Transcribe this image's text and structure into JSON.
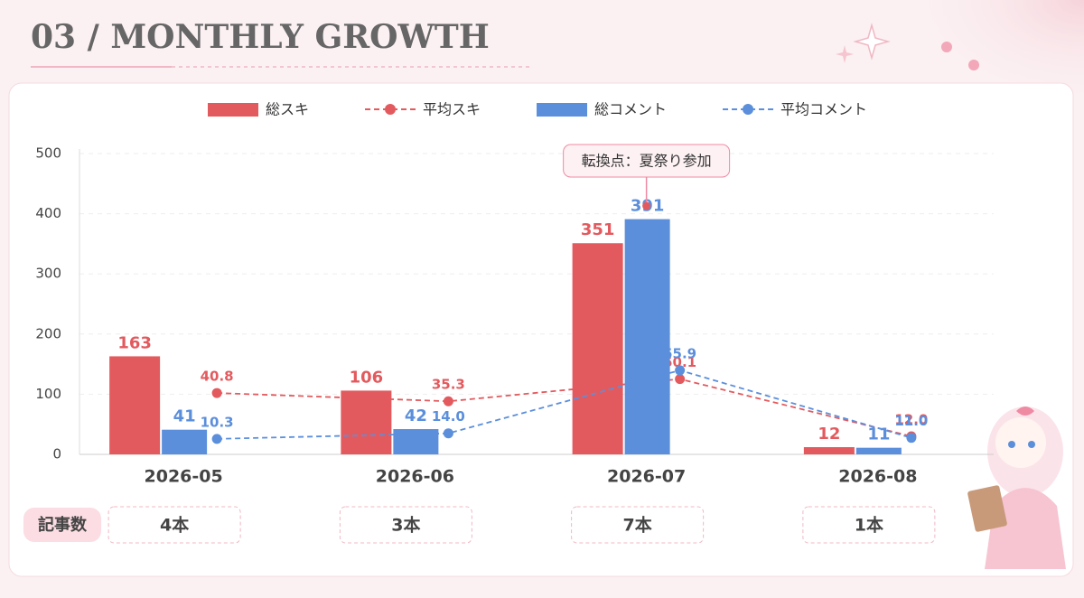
{
  "chart_data": {
    "type": "bar_line",
    "title": "03 / MONTHLY GROWTH",
    "categories": [
      "2026-05",
      "2026-06",
      "2026-07",
      "2026-08"
    ],
    "series": [
      {
        "name": "総スキ",
        "type": "bar",
        "color": "#e35a5e",
        "values": [
          163,
          106,
          351,
          12
        ]
      },
      {
        "name": "平均スキ",
        "type": "line",
        "axis": "y2",
        "color": "#e35a5e",
        "values": [
          40.8,
          35.3,
          50.1,
          12
        ],
        "value_labels": [
          "40.8",
          "35.3",
          "50.1",
          "12.0"
        ]
      },
      {
        "name": "総コメント",
        "type": "bar",
        "color": "#5b8fdc",
        "values": [
          41,
          42,
          391,
          11
        ]
      },
      {
        "name": "平均コメント",
        "type": "line",
        "axis": "y2",
        "color": "#5b8fdc",
        "values": [
          10.3,
          14,
          55.9,
          11
        ],
        "value_labels": [
          "10.3",
          "14.0",
          "55.9",
          "11.0"
        ]
      }
    ],
    "ylim": [
      0,
      500
    ],
    "yticks": [
      0,
      100,
      200,
      300,
      400,
      500
    ],
    "y2lim": [
      0,
      200
    ],
    "grid": true,
    "legend": "top",
    "annotation": {
      "text": "転換点：夏祭り参加",
      "category": 2
    },
    "article_counts": {
      "label": "記事数",
      "values": [
        "4本",
        "3本",
        "7本",
        "1本"
      ]
    }
  }
}
